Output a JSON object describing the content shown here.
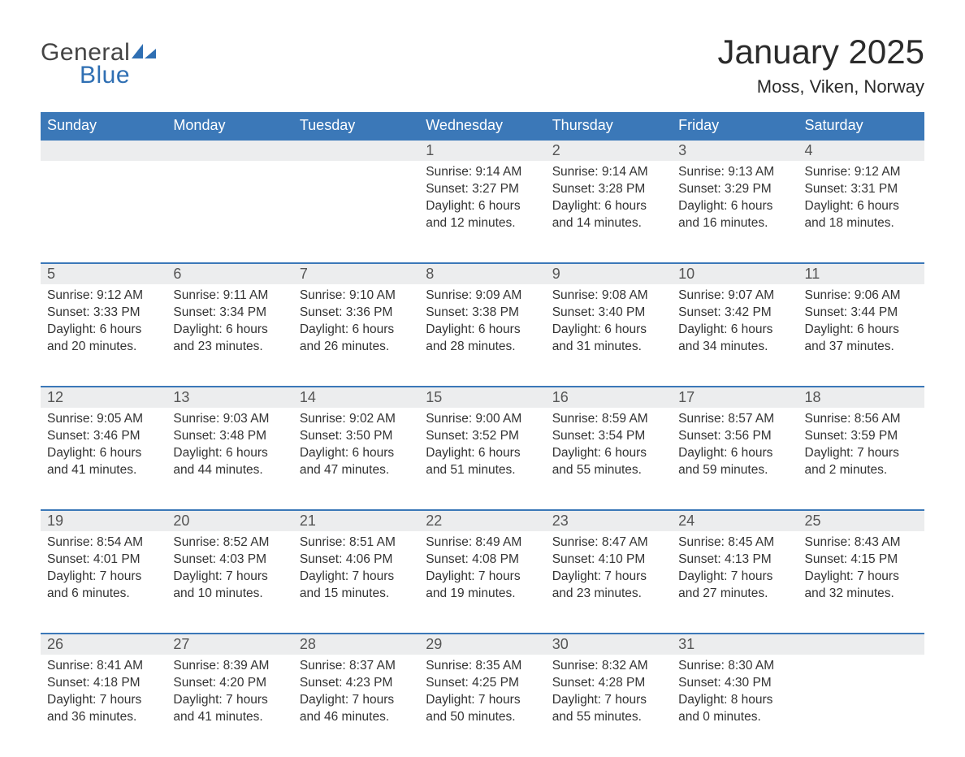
{
  "logo": {
    "text1": "General",
    "text2": "Blue"
  },
  "title": "January 2025",
  "location": "Moss, Viken, Norway",
  "colors": {
    "header_bg": "#3b78b8",
    "header_text": "#ffffff",
    "daynum_bg": "#ecedee",
    "day_border": "#3b78b8",
    "body_text": "#333333",
    "logo_gray": "#444444",
    "logo_blue": "#2f6fb3",
    "page_bg": "#ffffff"
  },
  "typography": {
    "title_fontsize": 42,
    "location_fontsize": 22,
    "dayheader_fontsize": 18,
    "daynum_fontsize": 18,
    "cell_fontsize": 15.5
  },
  "day_headers": [
    "Sunday",
    "Monday",
    "Tuesday",
    "Wednesday",
    "Thursday",
    "Friday",
    "Saturday"
  ],
  "weeks": [
    [
      null,
      null,
      null,
      {
        "n": "1",
        "sunrise": "9:14 AM",
        "sunset": "3:27 PM",
        "d1": "6 hours",
        "d2": "and 12 minutes."
      },
      {
        "n": "2",
        "sunrise": "9:14 AM",
        "sunset": "3:28 PM",
        "d1": "6 hours",
        "d2": "and 14 minutes."
      },
      {
        "n": "3",
        "sunrise": "9:13 AM",
        "sunset": "3:29 PM",
        "d1": "6 hours",
        "d2": "and 16 minutes."
      },
      {
        "n": "4",
        "sunrise": "9:12 AM",
        "sunset": "3:31 PM",
        "d1": "6 hours",
        "d2": "and 18 minutes."
      }
    ],
    [
      {
        "n": "5",
        "sunrise": "9:12 AM",
        "sunset": "3:33 PM",
        "d1": "6 hours",
        "d2": "and 20 minutes."
      },
      {
        "n": "6",
        "sunrise": "9:11 AM",
        "sunset": "3:34 PM",
        "d1": "6 hours",
        "d2": "and 23 minutes."
      },
      {
        "n": "7",
        "sunrise": "9:10 AM",
        "sunset": "3:36 PM",
        "d1": "6 hours",
        "d2": "and 26 minutes."
      },
      {
        "n": "8",
        "sunrise": "9:09 AM",
        "sunset": "3:38 PM",
        "d1": "6 hours",
        "d2": "and 28 minutes."
      },
      {
        "n": "9",
        "sunrise": "9:08 AM",
        "sunset": "3:40 PM",
        "d1": "6 hours",
        "d2": "and 31 minutes."
      },
      {
        "n": "10",
        "sunrise": "9:07 AM",
        "sunset": "3:42 PM",
        "d1": "6 hours",
        "d2": "and 34 minutes."
      },
      {
        "n": "11",
        "sunrise": "9:06 AM",
        "sunset": "3:44 PM",
        "d1": "6 hours",
        "d2": "and 37 minutes."
      }
    ],
    [
      {
        "n": "12",
        "sunrise": "9:05 AM",
        "sunset": "3:46 PM",
        "d1": "6 hours",
        "d2": "and 41 minutes."
      },
      {
        "n": "13",
        "sunrise": "9:03 AM",
        "sunset": "3:48 PM",
        "d1": "6 hours",
        "d2": "and 44 minutes."
      },
      {
        "n": "14",
        "sunrise": "9:02 AM",
        "sunset": "3:50 PM",
        "d1": "6 hours",
        "d2": "and 47 minutes."
      },
      {
        "n": "15",
        "sunrise": "9:00 AM",
        "sunset": "3:52 PM",
        "d1": "6 hours",
        "d2": "and 51 minutes."
      },
      {
        "n": "16",
        "sunrise": "8:59 AM",
        "sunset": "3:54 PM",
        "d1": "6 hours",
        "d2": "and 55 minutes."
      },
      {
        "n": "17",
        "sunrise": "8:57 AM",
        "sunset": "3:56 PM",
        "d1": "6 hours",
        "d2": "and 59 minutes."
      },
      {
        "n": "18",
        "sunrise": "8:56 AM",
        "sunset": "3:59 PM",
        "d1": "7 hours",
        "d2": "and 2 minutes."
      }
    ],
    [
      {
        "n": "19",
        "sunrise": "8:54 AM",
        "sunset": "4:01 PM",
        "d1": "7 hours",
        "d2": "and 6 minutes."
      },
      {
        "n": "20",
        "sunrise": "8:52 AM",
        "sunset": "4:03 PM",
        "d1": "7 hours",
        "d2": "and 10 minutes."
      },
      {
        "n": "21",
        "sunrise": "8:51 AM",
        "sunset": "4:06 PM",
        "d1": "7 hours",
        "d2": "and 15 minutes."
      },
      {
        "n": "22",
        "sunrise": "8:49 AM",
        "sunset": "4:08 PM",
        "d1": "7 hours",
        "d2": "and 19 minutes."
      },
      {
        "n": "23",
        "sunrise": "8:47 AM",
        "sunset": "4:10 PM",
        "d1": "7 hours",
        "d2": "and 23 minutes."
      },
      {
        "n": "24",
        "sunrise": "8:45 AM",
        "sunset": "4:13 PM",
        "d1": "7 hours",
        "d2": "and 27 minutes."
      },
      {
        "n": "25",
        "sunrise": "8:43 AM",
        "sunset": "4:15 PM",
        "d1": "7 hours",
        "d2": "and 32 minutes."
      }
    ],
    [
      {
        "n": "26",
        "sunrise": "8:41 AM",
        "sunset": "4:18 PM",
        "d1": "7 hours",
        "d2": "and 36 minutes."
      },
      {
        "n": "27",
        "sunrise": "8:39 AM",
        "sunset": "4:20 PM",
        "d1": "7 hours",
        "d2": "and 41 minutes."
      },
      {
        "n": "28",
        "sunrise": "8:37 AM",
        "sunset": "4:23 PM",
        "d1": "7 hours",
        "d2": "and 46 minutes."
      },
      {
        "n": "29",
        "sunrise": "8:35 AM",
        "sunset": "4:25 PM",
        "d1": "7 hours",
        "d2": "and 50 minutes."
      },
      {
        "n": "30",
        "sunrise": "8:32 AM",
        "sunset": "4:28 PM",
        "d1": "7 hours",
        "d2": "and 55 minutes."
      },
      {
        "n": "31",
        "sunrise": "8:30 AM",
        "sunset": "4:30 PM",
        "d1": "8 hours",
        "d2": "and 0 minutes."
      },
      null
    ]
  ],
  "labels": {
    "sunrise": "Sunrise: ",
    "sunset": "Sunset: ",
    "daylight": "Daylight: "
  }
}
